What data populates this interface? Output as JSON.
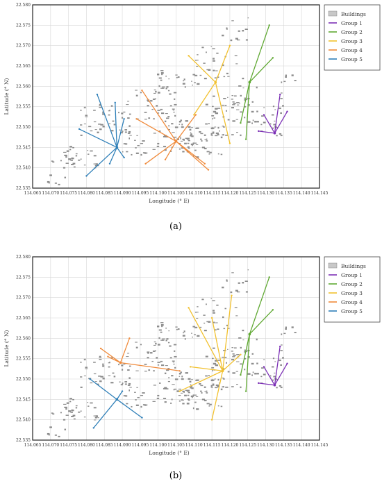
{
  "chart_data": [
    {
      "type": "scatter",
      "panel_label": "(a)",
      "xlabel": "Longitude (° E)",
      "ylabel": "Latitude (° N)",
      "xlim": [
        114.065,
        114.145
      ],
      "ylim": [
        22.535,
        22.58
      ],
      "xticks": [
        "114.065",
        "114.070",
        "114.075",
        "114.080",
        "114.085",
        "114.090",
        "114.095",
        "114.100",
        "114.105",
        "114.110",
        "114.115",
        "114.120",
        "114.125",
        "114.130",
        "114.135",
        "114.140",
        "114.145"
      ],
      "yticks": [
        "22.535",
        "22.540",
        "22.545",
        "22.550",
        "22.555",
        "22.560",
        "22.565",
        "22.570",
        "22.575",
        "22.580"
      ],
      "grid": true,
      "legend": "outside-right",
      "buildings_label": "Buildings",
      "groups": [
        {
          "name": "Group 1",
          "color": "#7b2fb5",
          "center": [
            114.1325,
            22.5485
          ],
          "endpoints": [
            [
              114.134,
              22.558
            ],
            [
              114.136,
              22.5538
            ],
            [
              114.1295,
              22.553
            ],
            [
              114.128,
              22.549
            ]
          ]
        },
        {
          "name": "Group 2",
          "color": "#5fa832",
          "center": [
            114.1255,
            22.561
          ],
          "endpoints": [
            [
              114.131,
              22.575
            ],
            [
              114.132,
              22.567
            ],
            [
              114.123,
              22.551
            ],
            [
              114.1245,
              22.547
            ]
          ]
        },
        {
          "name": "Group 3",
          "color": "#f2c12e",
          "center": [
            114.116,
            22.561
          ],
          "endpoints": [
            [
              114.1085,
              22.5675
            ],
            [
              114.12,
              22.57
            ],
            [
              114.11,
              22.553
            ],
            [
              114.12,
              22.546
            ]
          ]
        },
        {
          "name": "Group 4",
          "color": "#f08a3a",
          "center": [
            114.105,
            22.5465
          ],
          "endpoints": [
            [
              114.0955,
              22.559
            ],
            [
              114.094,
              22.552
            ],
            [
              114.0965,
              22.541
            ],
            [
              114.102,
              22.542
            ],
            [
              114.1105,
              22.553
            ],
            [
              114.113,
              22.541
            ],
            [
              114.114,
              22.5395
            ]
          ]
        },
        {
          "name": "Group 5",
          "color": "#2e7fb8",
          "center": [
            114.0885,
            22.545
          ],
          "endpoints": [
            [
              114.078,
              22.5495
            ],
            [
              114.083,
              22.558
            ],
            [
              114.088,
              22.556
            ],
            [
              114.0905,
              22.552
            ],
            [
              114.08,
              22.538
            ],
            [
              114.0865,
              22.541
            ],
            [
              114.0905,
              22.5425
            ]
          ]
        }
      ]
    },
    {
      "type": "scatter",
      "panel_label": "(b)",
      "xlabel": "Longitude (° E)",
      "ylabel": "Latitude (° N)",
      "xlim": [
        114.065,
        114.145
      ],
      "ylim": [
        22.535,
        22.58
      ],
      "xticks": [
        "114.065",
        "114.070",
        "114.075",
        "114.080",
        "114.085",
        "114.090",
        "114.095",
        "114.100",
        "114.105",
        "114.110",
        "114.115",
        "114.120",
        "114.125",
        "114.130",
        "114.135",
        "114.140",
        "114.145"
      ],
      "yticks": [
        "22.535",
        "22.540",
        "22.545",
        "22.550",
        "22.555",
        "22.560",
        "22.565",
        "22.570",
        "22.575",
        "22.580"
      ],
      "grid": true,
      "legend": "outside-right",
      "buildings_label": "Buildings",
      "groups": [
        {
          "name": "Group 1",
          "color": "#7b2fb5",
          "center": [
            114.1325,
            22.5485
          ],
          "endpoints": [
            [
              114.134,
              22.558
            ],
            [
              114.136,
              22.5538
            ],
            [
              114.1295,
              22.553
            ],
            [
              114.128,
              22.549
            ]
          ]
        },
        {
          "name": "Group 2",
          "color": "#5fa832",
          "center": [
            114.1255,
            22.561
          ],
          "endpoints": [
            [
              114.131,
              22.575
            ],
            [
              114.132,
              22.567
            ],
            [
              114.123,
              22.551
            ],
            [
              114.1245,
              22.547
            ]
          ]
        },
        {
          "name": "Group 3",
          "color": "#f2c12e",
          "center": [
            114.118,
            22.552
          ],
          "endpoints": [
            [
              114.1085,
              22.5675
            ],
            [
              114.115,
              22.565
            ],
            [
              114.1205,
              22.5705
            ],
            [
              114.109,
              22.553
            ],
            [
              114.106,
              22.547
            ],
            [
              114.115,
              22.54
            ],
            [
              114.123,
              22.556
            ]
          ]
        },
        {
          "name": "Group 4",
          "color": "#f08a3a",
          "center": [
            114.0895,
            22.554
          ],
          "endpoints": [
            [
              114.084,
              22.5575
            ],
            [
              114.092,
              22.56
            ],
            [
              114.086,
              22.5555
            ],
            [
              114.106,
              22.552
            ]
          ]
        },
        {
          "name": "Group 5",
          "color": "#2e7fb8",
          "center": [
            114.0885,
            22.545
          ],
          "endpoints": [
            [
              114.081,
              22.55
            ],
            [
              114.082,
              22.538
            ],
            [
              114.0955,
              22.5405
            ],
            [
              114.09,
              22.547
            ]
          ]
        }
      ]
    }
  ]
}
